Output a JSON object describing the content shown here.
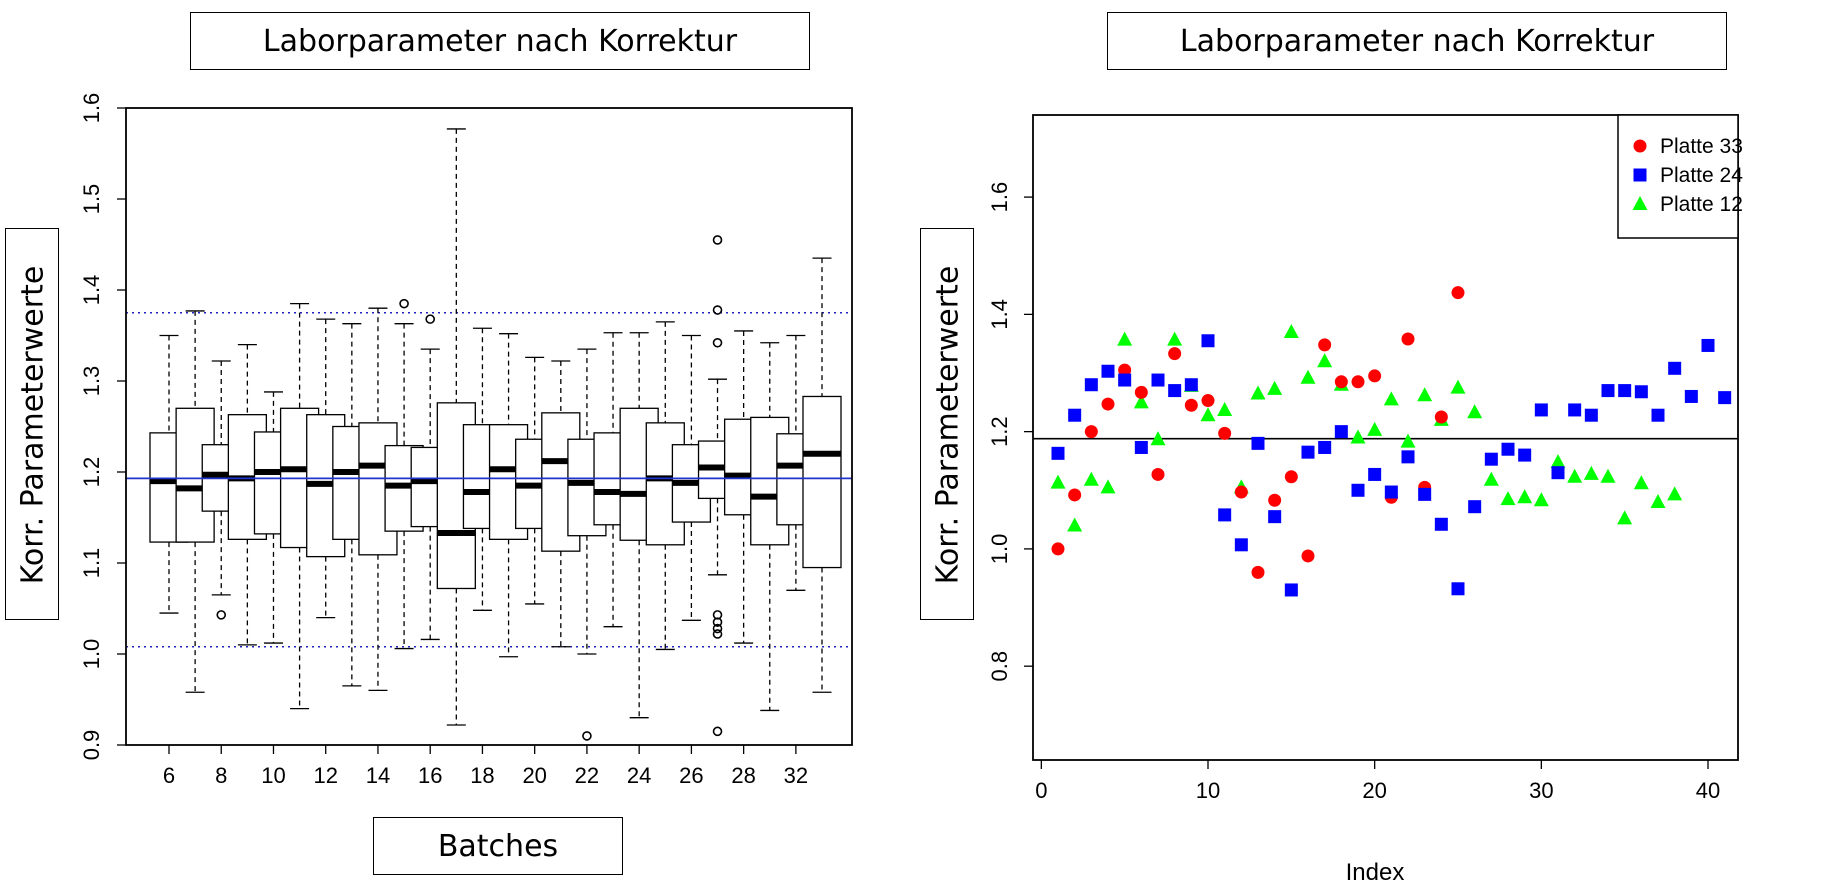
{
  "chart_data": [
    {
      "type": "boxplot",
      "title": "Laborparameter nach Korrektur",
      "xlabel": "Batches",
      "ylabel": "Korr. Parameterwerte",
      "ylim": [
        0.9,
        1.6
      ],
      "yticks": [
        "0.9",
        "1.0",
        "1.1",
        "1.2",
        "1.3",
        "1.4",
        "1.5",
        "1.6"
      ],
      "xticks": [
        "6",
        "8",
        "10",
        "12",
        "14",
        "16",
        "18",
        "20",
        "22",
        "24",
        "26",
        "28",
        "32"
      ],
      "categories": [
        "6",
        "7",
        "8",
        "9",
        "10",
        "11",
        "12",
        "13",
        "14",
        "15",
        "16",
        "17",
        "18",
        "19",
        "20",
        "21",
        "22",
        "23",
        "24",
        "25",
        "26",
        "27",
        "28",
        "30",
        "32",
        "33"
      ],
      "tick_labels_for": [
        "6",
        "8",
        "10",
        "12",
        "14",
        "16",
        "18",
        "20",
        "22",
        "24",
        "26",
        "28",
        "32"
      ],
      "center_line": 1.193,
      "upper_limit_line": 1.375,
      "lower_limit_line": 1.008,
      "boxes": [
        {
          "batch": "6",
          "whisker_low": 1.045,
          "q1": 1.123,
          "median": 1.19,
          "q3": 1.243,
          "whisker_high": 1.35,
          "outliers": []
        },
        {
          "batch": "7",
          "whisker_low": 0.958,
          "q1": 1.123,
          "median": 1.182,
          "q3": 1.27,
          "whisker_high": 1.377,
          "outliers": []
        },
        {
          "batch": "8",
          "whisker_low": 1.065,
          "q1": 1.157,
          "median": 1.197,
          "q3": 1.23,
          "whisker_high": 1.322,
          "outliers": [
            1.043
          ]
        },
        {
          "batch": "9",
          "whisker_low": 1.01,
          "q1": 1.126,
          "median": 1.193,
          "q3": 1.263,
          "whisker_high": 1.34,
          "outliers": []
        },
        {
          "batch": "10",
          "whisker_low": 1.012,
          "q1": 1.132,
          "median": 1.2,
          "q3": 1.244,
          "whisker_high": 1.288,
          "outliers": []
        },
        {
          "batch": "11",
          "whisker_low": 0.94,
          "q1": 1.117,
          "median": 1.203,
          "q3": 1.27,
          "whisker_high": 1.385,
          "outliers": []
        },
        {
          "batch": "12",
          "whisker_low": 1.04,
          "q1": 1.107,
          "median": 1.187,
          "q3": 1.263,
          "whisker_high": 1.368,
          "outliers": []
        },
        {
          "batch": "13",
          "whisker_low": 0.965,
          "q1": 1.126,
          "median": 1.2,
          "q3": 1.25,
          "whisker_high": 1.363,
          "outliers": []
        },
        {
          "batch": "14",
          "whisker_low": 0.96,
          "q1": 1.109,
          "median": 1.207,
          "q3": 1.254,
          "whisker_high": 1.38,
          "outliers": []
        },
        {
          "batch": "15",
          "whisker_low": 1.006,
          "q1": 1.135,
          "median": 1.185,
          "q3": 1.229,
          "whisker_high": 1.363,
          "outliers": [
            1.385
          ]
        },
        {
          "batch": "16",
          "whisker_low": 1.016,
          "q1": 1.14,
          "median": 1.19,
          "q3": 1.227,
          "whisker_high": 1.335,
          "outliers": [
            1.368
          ]
        },
        {
          "batch": "17",
          "whisker_low": 0.922,
          "q1": 1.072,
          "median": 1.133,
          "q3": 1.276,
          "whisker_high": 1.577,
          "outliers": []
        },
        {
          "batch": "18",
          "whisker_low": 1.048,
          "q1": 1.138,
          "median": 1.178,
          "q3": 1.252,
          "whisker_high": 1.358,
          "outliers": []
        },
        {
          "batch": "19",
          "whisker_low": 0.997,
          "q1": 1.126,
          "median": 1.203,
          "q3": 1.252,
          "whisker_high": 1.352,
          "outliers": []
        },
        {
          "batch": "20",
          "whisker_low": 1.055,
          "q1": 1.138,
          "median": 1.185,
          "q3": 1.236,
          "whisker_high": 1.326,
          "outliers": []
        },
        {
          "batch": "21",
          "whisker_low": 1.008,
          "q1": 1.113,
          "median": 1.212,
          "q3": 1.265,
          "whisker_high": 1.322,
          "outliers": []
        },
        {
          "batch": "22",
          "whisker_low": 1.0,
          "q1": 1.13,
          "median": 1.188,
          "q3": 1.236,
          "whisker_high": 1.335,
          "outliers": [
            0.91
          ]
        },
        {
          "batch": "23",
          "whisker_low": 1.03,
          "q1": 1.142,
          "median": 1.178,
          "q3": 1.243,
          "whisker_high": 1.353,
          "outliers": []
        },
        {
          "batch": "24",
          "whisker_low": 0.93,
          "q1": 1.125,
          "median": 1.176,
          "q3": 1.27,
          "whisker_high": 1.353,
          "outliers": []
        },
        {
          "batch": "25",
          "whisker_low": 1.005,
          "q1": 1.12,
          "median": 1.193,
          "q3": 1.254,
          "whisker_high": 1.365,
          "outliers": []
        },
        {
          "batch": "26",
          "whisker_low": 1.037,
          "q1": 1.145,
          "median": 1.188,
          "q3": 1.23,
          "whisker_high": 1.35,
          "outliers": []
        },
        {
          "batch": "27",
          "whisker_low": 1.087,
          "q1": 1.171,
          "median": 1.205,
          "q3": 1.234,
          "whisker_high": 1.302,
          "outliers": [
            1.455,
            1.378,
            1.342,
            1.043,
            1.035,
            1.028,
            1.022,
            0.915
          ]
        },
        {
          "batch": "28",
          "whisker_low": 1.012,
          "q1": 1.153,
          "median": 1.196,
          "q3": 1.258,
          "whisker_high": 1.355,
          "outliers": []
        },
        {
          "batch": "30",
          "whisker_low": 0.938,
          "q1": 1.12,
          "median": 1.173,
          "q3": 1.26,
          "whisker_high": 1.342,
          "outliers": []
        },
        {
          "batch": "32",
          "whisker_low": 1.07,
          "q1": 1.142,
          "median": 1.207,
          "q3": 1.242,
          "whisker_high": 1.35,
          "outliers": []
        },
        {
          "batch": "33",
          "whisker_low": 0.958,
          "q1": 1.095,
          "median": 1.22,
          "q3": 1.283,
          "whisker_high": 1.435,
          "outliers": []
        }
      ]
    },
    {
      "type": "scatter",
      "title": "Laborparameter nach Korrektur",
      "xlabel": "Index",
      "ylabel": "Korr. Parameterwerte",
      "xlim": [
        -0.5,
        41.8
      ],
      "ylim": [
        0.64,
        1.74
      ],
      "xticks": [
        "0",
        "10",
        "20",
        "30",
        "40"
      ],
      "yticks": [
        "0.8",
        "1.0",
        "1.2",
        "1.4",
        "1.6"
      ],
      "reference_line": 1.188,
      "legend": "top-right",
      "series": [
        {
          "name": "Platte 33",
          "color": "#ff0000",
          "marker": "circle",
          "points": [
            [
              1,
              1.0
            ],
            [
              2,
              1.092
            ],
            [
              3,
              1.2
            ],
            [
              4,
              1.247
            ],
            [
              5,
              1.305
            ],
            [
              6,
              1.267
            ],
            [
              7,
              1.127
            ],
            [
              8,
              1.333
            ],
            [
              9,
              1.245
            ],
            [
              10,
              1.253
            ],
            [
              11,
              1.197
            ],
            [
              12,
              1.097
            ],
            [
              13,
              0.96
            ],
            [
              14,
              1.083
            ],
            [
              15,
              1.123
            ],
            [
              16,
              0.988
            ],
            [
              17,
              1.348
            ],
            [
              18,
              1.285
            ],
            [
              19,
              1.285
            ],
            [
              20,
              1.295
            ],
            [
              21,
              1.088
            ],
            [
              22,
              1.358
            ],
            [
              23,
              1.105
            ],
            [
              24,
              1.225
            ],
            [
              25,
              1.437
            ]
          ]
        },
        {
          "name": "Platte 24",
          "color": "#0000ff",
          "marker": "square",
          "points": [
            [
              1,
              1.163
            ],
            [
              2,
              1.228
            ],
            [
              3,
              1.28
            ],
            [
              4,
              1.303
            ],
            [
              5,
              1.288
            ],
            [
              6,
              1.173
            ],
            [
              7,
              1.288
            ],
            [
              8,
              1.27
            ],
            [
              9,
              1.28
            ],
            [
              10,
              1.355
            ],
            [
              11,
              1.058
            ],
            [
              12,
              1.007
            ],
            [
              13,
              1.18
            ],
            [
              14,
              1.055
            ],
            [
              15,
              0.93
            ],
            [
              16,
              1.165
            ],
            [
              17,
              1.173
            ],
            [
              18,
              1.2
            ],
            [
              19,
              1.1
            ],
            [
              20,
              1.127
            ],
            [
              21,
              1.097
            ],
            [
              22,
              1.157
            ],
            [
              23,
              1.093
            ],
            [
              24,
              1.042
            ],
            [
              25,
              0.932
            ],
            [
              26,
              1.072
            ],
            [
              27,
              1.153
            ],
            [
              28,
              1.17
            ],
            [
              29,
              1.16
            ],
            [
              30,
              1.237
            ],
            [
              31,
              1.13
            ],
            [
              32,
              1.237
            ],
            [
              33,
              1.228
            ],
            [
              34,
              1.27
            ],
            [
              35,
              1.27
            ],
            [
              36,
              1.268
            ],
            [
              37,
              1.228
            ],
            [
              38,
              1.308
            ],
            [
              39,
              1.26
            ],
            [
              40,
              1.347
            ],
            [
              41,
              1.258
            ]
          ]
        },
        {
          "name": "Platte 12",
          "color": "#00ff00",
          "marker": "triangle",
          "points": [
            [
              1,
              1.113
            ],
            [
              2,
              1.04
            ],
            [
              3,
              1.118
            ],
            [
              4,
              1.105
            ],
            [
              5,
              1.357
            ],
            [
              6,
              1.25
            ],
            [
              7,
              1.187
            ],
            [
              8,
              1.357
            ],
            [
              9,
              1.278
            ],
            [
              10,
              1.228
            ],
            [
              11,
              1.237
            ],
            [
              12,
              1.105
            ],
            [
              13,
              1.265
            ],
            [
              14,
              1.273
            ],
            [
              15,
              1.37
            ],
            [
              16,
              1.292
            ],
            [
              17,
              1.32
            ],
            [
              18,
              1.28
            ],
            [
              19,
              1.19
            ],
            [
              20,
              1.203
            ],
            [
              21,
              1.255
            ],
            [
              22,
              1.183
            ],
            [
              23,
              1.262
            ],
            [
              24,
              1.22
            ],
            [
              25,
              1.275
            ],
            [
              26,
              1.233
            ],
            [
              27,
              1.118
            ],
            [
              28,
              1.085
            ],
            [
              29,
              1.088
            ],
            [
              30,
              1.083
            ],
            [
              31,
              1.148
            ],
            [
              32,
              1.123
            ],
            [
              33,
              1.128
            ],
            [
              34,
              1.123
            ],
            [
              35,
              1.052
            ],
            [
              36,
              1.112
            ],
            [
              37,
              1.08
            ],
            [
              38,
              1.093
            ]
          ]
        }
      ]
    }
  ]
}
